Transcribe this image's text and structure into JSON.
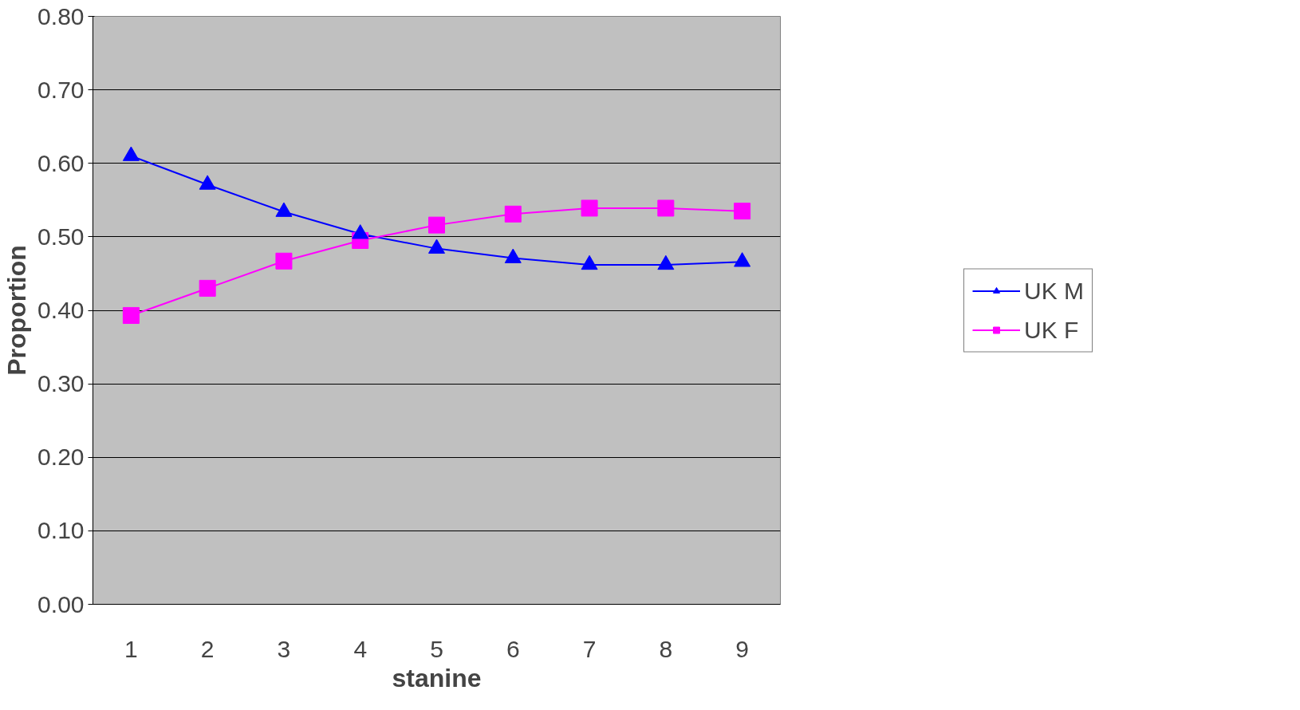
{
  "chart_data": {
    "type": "line",
    "xlabel": "stanine",
    "ylabel": "Proportion",
    "categories": [
      "1",
      "2",
      "3",
      "4",
      "5",
      "6",
      "7",
      "8",
      "9"
    ],
    "series": [
      {
        "name": "UK M",
        "color": "#0000ff",
        "marker": "triangle",
        "values": [
          0.61,
          0.571,
          0.534,
          0.504,
          0.484,
          0.471,
          0.462,
          0.462,
          0.466
        ]
      },
      {
        "name": "UK F",
        "color": "#ff00ff",
        "marker": "square",
        "values": [
          0.393,
          0.43,
          0.467,
          0.495,
          0.516,
          0.531,
          0.539,
          0.539,
          0.535
        ]
      }
    ],
    "ylim": [
      0,
      0.8
    ],
    "yticks": [
      {
        "value": 0,
        "label": "0.00"
      },
      {
        "value": 0.1,
        "label": "0.10"
      },
      {
        "value": 0.2,
        "label": "0.20"
      },
      {
        "value": 0.3,
        "label": "0.30"
      },
      {
        "value": 0.4,
        "label": "0.40"
      },
      {
        "value": 0.5,
        "label": "0.50"
      },
      {
        "value": 0.6,
        "label": "0.60"
      },
      {
        "value": 0.7,
        "label": "0.70"
      },
      {
        "value": 0.8,
        "label": "0.80"
      }
    ],
    "grid": "y",
    "legend": "right",
    "line_style": "solid"
  }
}
